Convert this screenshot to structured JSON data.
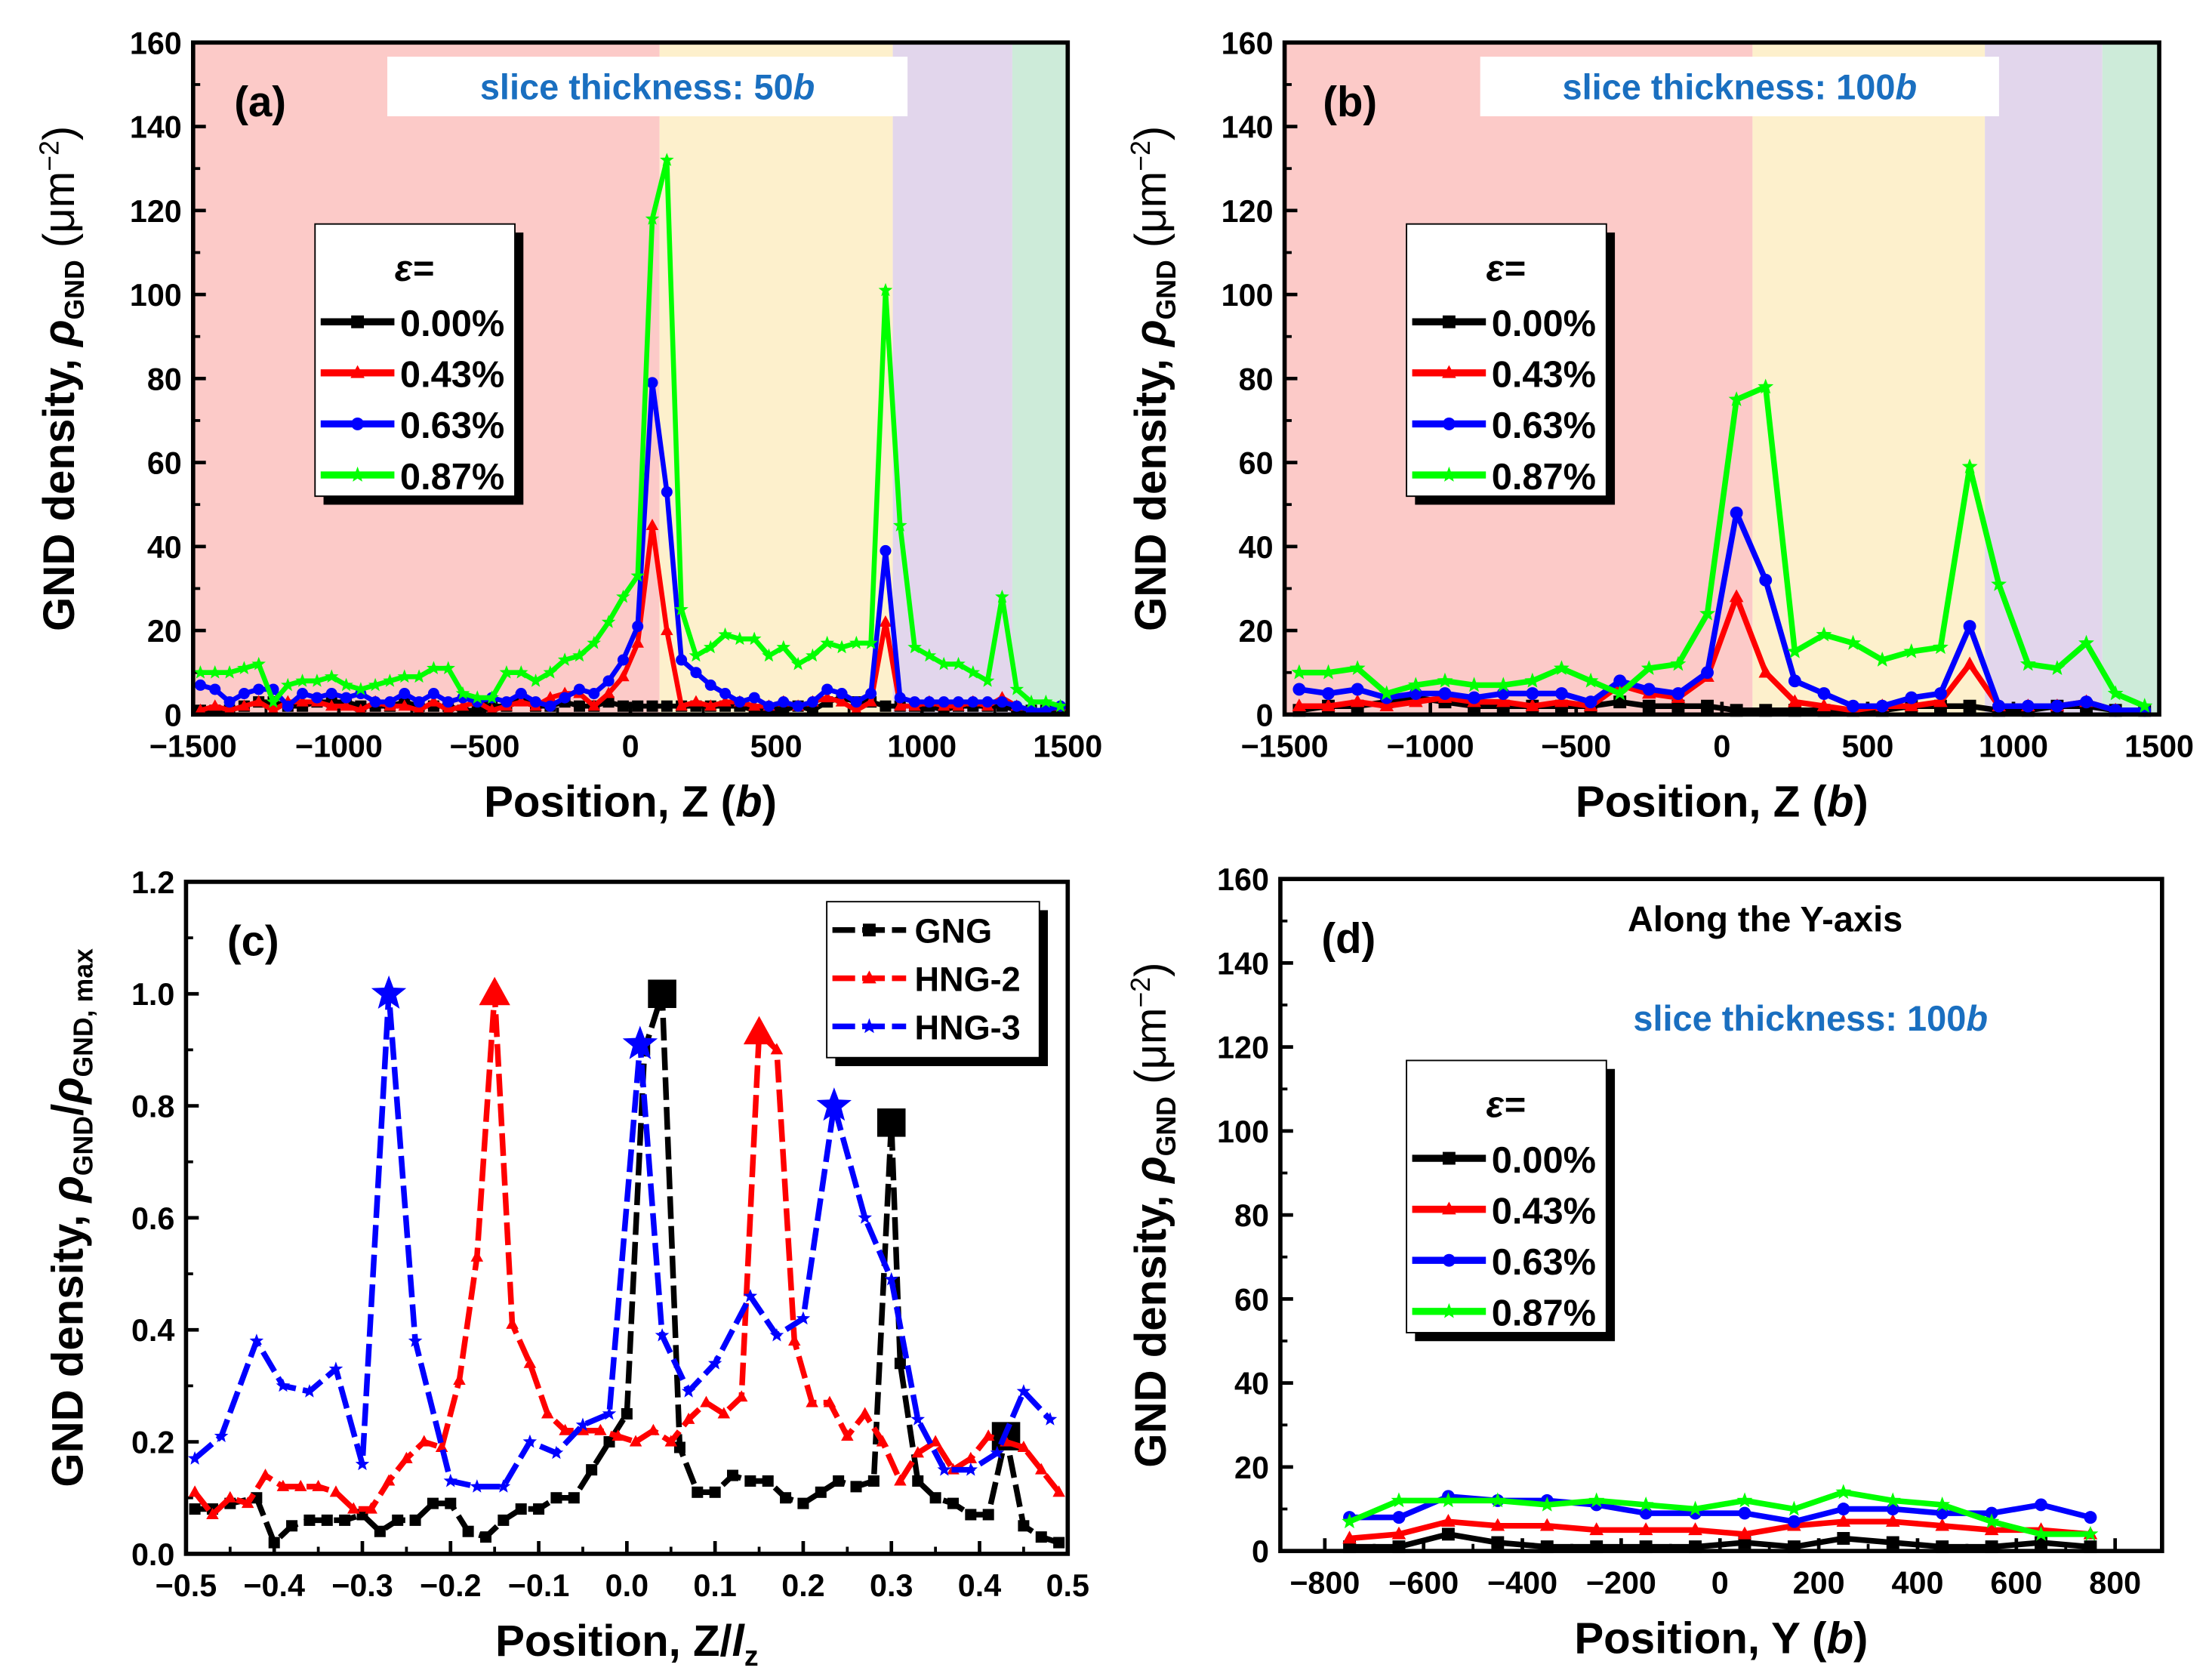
{
  "colors": {
    "black": "#000000",
    "red": "#ff0000",
    "blue": "#0000ff",
    "green": "#00ff00",
    "annot_blue": "#1a6fc0",
    "annot_red": "#c00000",
    "shade_pink": "#fccac8",
    "shade_yellow": "#fdf0cc",
    "shade_purple": "#e2d6ec",
    "shade_green": "#cdebd9"
  },
  "chart_data": [
    {
      "panel_label": "(a)",
      "type": "line",
      "annotation": [
        "slice thickness: 50",
        "b"
      ],
      "xlabel": [
        "Position, Z (",
        "b",
        ")"
      ],
      "ylabel": [
        "GND density, ",
        "ρ",
        "GND",
        " (μm",
        "−2",
        ")"
      ],
      "xlim": [
        -1500,
        1500
      ],
      "ylim": [
        0,
        160
      ],
      "xticks": [
        -1500,
        -1000,
        -500,
        0,
        500,
        1000,
        1500
      ],
      "xtick_labels": [
        "−1500",
        "−1000",
        "−500",
        "0",
        "500",
        "1000",
        "1500"
      ],
      "yticks": [
        0,
        20,
        40,
        60,
        80,
        100,
        120,
        140,
        160
      ],
      "ytick_labels": [
        "0",
        "20",
        "40",
        "60",
        "80",
        "100",
        "120",
        "140",
        "160"
      ],
      "shading": [
        {
          "from": -1500,
          "to": 100,
          "color": "shade_pink"
        },
        {
          "from": 100,
          "to": 900,
          "color": "shade_yellow"
        },
        {
          "from": 900,
          "to": 1310,
          "color": "shade_purple"
        },
        {
          "from": 1310,
          "to": 1500,
          "color": "shade_green"
        }
      ],
      "legend_title": "ε=",
      "x_start": -1475,
      "x_step": 50,
      "series": [
        {
          "name": "0.00%",
          "color": "black",
          "marker": "square",
          "values": [
            1,
            1,
            1,
            2,
            3,
            3,
            2,
            2,
            3,
            3,
            3,
            2,
            2,
            2,
            3,
            2,
            2,
            2,
            1,
            1,
            2,
            2,
            4,
            2,
            2,
            3,
            2,
            2,
            3,
            2,
            2,
            2,
            2,
            2,
            2,
            2,
            2,
            2,
            1,
            1,
            1,
            2,
            1,
            3,
            4,
            3,
            3,
            2,
            2,
            2,
            2,
            1,
            2,
            2,
            2,
            2,
            1,
            1,
            1,
            1
          ]
        },
        {
          "name": "0.43%",
          "color": "red",
          "marker": "triangle",
          "values": [
            1,
            2,
            1,
            2,
            3,
            1,
            3,
            3,
            3,
            2,
            2,
            1,
            3,
            2,
            2,
            1,
            3,
            1,
            2,
            3,
            1,
            2,
            3,
            2,
            4,
            5,
            5,
            2,
            5,
            9,
            17,
            45,
            20,
            2,
            3,
            2,
            3,
            3,
            2,
            2,
            3,
            2,
            3,
            4,
            3,
            1,
            3,
            22,
            2,
            2,
            3,
            2,
            2,
            3,
            2,
            4,
            2,
            1,
            1,
            2
          ]
        },
        {
          "name": "0.63%",
          "color": "blue",
          "marker": "circle",
          "values": [
            7,
            6,
            3,
            5,
            6,
            6,
            2,
            5,
            4,
            5,
            4,
            5,
            3,
            3,
            5,
            3,
            5,
            3,
            4,
            3,
            4,
            3,
            5,
            3,
            2,
            4,
            6,
            5,
            8,
            13,
            21,
            79,
            53,
            13,
            10,
            7,
            5,
            3,
            4,
            2,
            3,
            2,
            3,
            6,
            5,
            3,
            5,
            39,
            4,
            3,
            3,
            3,
            3,
            3,
            3,
            3,
            2,
            1,
            1,
            2
          ]
        },
        {
          "name": "0.87%",
          "color": "green",
          "marker": "star",
          "values": [
            10,
            10,
            10,
            11,
            12,
            3,
            7,
            8,
            8,
            9,
            7,
            6,
            7,
            8,
            9,
            9,
            11,
            11,
            5,
            4,
            4,
            10,
            10,
            8,
            10,
            13,
            14,
            17,
            22,
            28,
            33,
            118,
            132,
            25,
            14,
            16,
            19,
            18,
            18,
            14,
            16,
            12,
            14,
            17,
            16,
            17,
            17,
            101,
            45,
            16,
            14,
            12,
            12,
            10,
            8,
            28,
            6,
            3,
            3,
            2
          ]
        }
      ]
    },
    {
      "panel_label": "(b)",
      "type": "line",
      "annotation": [
        "slice thickness: 100",
        "b"
      ],
      "xlabel": [
        "Position, Z (",
        "b",
        ")"
      ],
      "ylabel": [
        "GND density, ",
        "ρ",
        "GND",
        " (μm",
        "−2",
        ")"
      ],
      "xlim": [
        -1500,
        1500
      ],
      "ylim": [
        0,
        160
      ],
      "xticks": [
        -1500,
        -1000,
        -500,
        0,
        500,
        1000,
        1500
      ],
      "xtick_labels": [
        "−1500",
        "−1000",
        "−500",
        "0",
        "500",
        "1000",
        "1500"
      ],
      "yticks": [
        0,
        20,
        40,
        60,
        80,
        100,
        120,
        140,
        160
      ],
      "ytick_labels": [
        "0",
        "20",
        "40",
        "60",
        "80",
        "100",
        "120",
        "140",
        "160"
      ],
      "shading": [
        {
          "from": -1500,
          "to": 105,
          "color": "shade_pink"
        },
        {
          "from": 105,
          "to": 902,
          "color": "shade_yellow"
        },
        {
          "from": 902,
          "to": 1305,
          "color": "shade_purple"
        },
        {
          "from": 1305,
          "to": 1500,
          "color": "shade_green"
        }
      ],
      "legend_title": "ε=",
      "x_start": -1450,
      "x_step": 100,
      "series": [
        {
          "name": "0.00%",
          "color": "black",
          "marker": "square",
          "values": [
            1,
            2,
            2,
            3,
            4,
            3,
            2,
            2,
            2,
            2,
            2,
            3,
            2,
            2,
            2,
            1,
            1,
            1,
            1,
            1,
            1,
            2,
            2,
            2,
            1,
            1,
            2,
            2,
            1,
            1
          ]
        },
        {
          "name": "0.43%",
          "color": "red",
          "marker": "triangle",
          "values": [
            2,
            2,
            3,
            2,
            3,
            4,
            3,
            3,
            2,
            3,
            2,
            7,
            5,
            4,
            9,
            28,
            10,
            3,
            2,
            1,
            2,
            2,
            3,
            12,
            2,
            2,
            2,
            3,
            1,
            1
          ]
        },
        {
          "name": "0.63%",
          "color": "blue",
          "marker": "circle",
          "values": [
            6,
            5,
            6,
            4,
            5,
            5,
            4,
            5,
            5,
            5,
            3,
            8,
            6,
            5,
            10,
            48,
            32,
            8,
            5,
            2,
            2,
            4,
            5,
            21,
            2,
            2,
            2,
            3,
            1,
            1
          ]
        },
        {
          "name": "0.87%",
          "color": "green",
          "marker": "star",
          "values": [
            10,
            10,
            11,
            5,
            7,
            8,
            7,
            7,
            8,
            11,
            8,
            5,
            11,
            12,
            24,
            75,
            78,
            15,
            19,
            17,
            13,
            15,
            16,
            59,
            31,
            12,
            11,
            17,
            5,
            2
          ]
        }
      ]
    },
    {
      "panel_label": "(c)",
      "type": "line",
      "xlabel": [
        "Position, Z/",
        "l",
        "z"
      ],
      "ylabel": [
        "GND density, ",
        "ρ",
        "GND",
        "/",
        "ρ",
        "GND, max"
      ],
      "xlim": [
        -0.5,
        0.5
      ],
      "ylim": [
        0,
        1.2
      ],
      "xticks": [
        -0.5,
        -0.4,
        -0.3,
        -0.2,
        -0.1,
        0.0,
        0.1,
        0.2,
        0.3,
        0.4,
        0.5
      ],
      "xtick_labels": [
        "−0.5",
        "−0.4",
        "−0.3",
        "−0.2",
        "−0.1",
        "0.0",
        "0.1",
        "0.2",
        "0.3",
        "0.4",
        "0.5"
      ],
      "yticks": [
        0,
        0.2,
        0.4,
        0.6,
        0.8,
        1.0,
        1.2
      ],
      "ytick_labels": [
        "0.0",
        "0.2",
        "0.4",
        "0.6",
        "0.8",
        "1.0",
        "1.2"
      ],
      "series": [
        {
          "name": "GNG",
          "color": "black",
          "marker": "square",
          "peaks": [
            0.04,
            0.3,
            0.43
          ],
          "x": [
            -0.49,
            -0.47,
            -0.45,
            -0.42,
            -0.4,
            -0.38,
            -0.36,
            -0.34,
            -0.32,
            -0.3,
            -0.28,
            -0.26,
            -0.24,
            -0.22,
            -0.2,
            -0.18,
            -0.16,
            -0.14,
            -0.12,
            -0.1,
            -0.08,
            -0.06,
            -0.04,
            -0.02,
            0.0,
            0.02,
            0.04,
            0.06,
            0.08,
            0.1,
            0.12,
            0.14,
            0.16,
            0.18,
            0.2,
            0.22,
            0.24,
            0.26,
            0.28,
            0.3,
            0.31,
            0.33,
            0.35,
            0.37,
            0.39,
            0.41,
            0.43,
            0.45,
            0.47,
            0.49
          ],
          "y": [
            0.08,
            0.08,
            0.09,
            0.1,
            0.02,
            0.05,
            0.06,
            0.06,
            0.06,
            0.07,
            0.04,
            0.06,
            0.06,
            0.09,
            0.09,
            0.04,
            0.03,
            0.06,
            0.08,
            0.08,
            0.1,
            0.1,
            0.15,
            0.2,
            0.25,
            0.9,
            1.0,
            0.19,
            0.11,
            0.11,
            0.14,
            0.13,
            0.13,
            0.1,
            0.09,
            0.11,
            0.13,
            0.12,
            0.13,
            0.77,
            0.34,
            0.13,
            0.1,
            0.09,
            0.07,
            0.07,
            0.21,
            0.05,
            0.03,
            0.02
          ]
        },
        {
          "name": "HNG-2",
          "color": "red",
          "marker": "triangle",
          "peaks": [
            -0.15,
            0.15
          ],
          "x": [
            -0.49,
            -0.47,
            -0.45,
            -0.43,
            -0.41,
            -0.39,
            -0.37,
            -0.35,
            -0.33,
            -0.31,
            -0.29,
            -0.27,
            -0.25,
            -0.23,
            -0.21,
            -0.19,
            -0.17,
            -0.15,
            -0.13,
            -0.11,
            -0.09,
            -0.07,
            -0.05,
            -0.03,
            -0.01,
            0.01,
            0.03,
            0.05,
            0.07,
            0.09,
            0.11,
            0.13,
            0.15,
            0.17,
            0.19,
            0.21,
            0.23,
            0.25,
            0.27,
            0.29,
            0.31,
            0.33,
            0.35,
            0.37,
            0.39,
            0.41,
            0.43,
            0.45,
            0.47,
            0.49
          ],
          "y": [
            0.11,
            0.07,
            0.1,
            0.09,
            0.14,
            0.12,
            0.12,
            0.12,
            0.11,
            0.08,
            0.08,
            0.13,
            0.17,
            0.2,
            0.19,
            0.31,
            0.53,
            1.0,
            0.41,
            0.34,
            0.25,
            0.22,
            0.22,
            0.22,
            0.21,
            0.2,
            0.22,
            0.2,
            0.24,
            0.27,
            0.25,
            0.28,
            0.93,
            0.9,
            0.38,
            0.27,
            0.27,
            0.21,
            0.25,
            0.2,
            0.13,
            0.18,
            0.2,
            0.15,
            0.17,
            0.21,
            0.2,
            0.19,
            0.15,
            0.11
          ]
        },
        {
          "name": "HNG-3",
          "color": "blue",
          "marker": "star",
          "peaks": [
            -0.27,
            0.015,
            0.235
          ],
          "x": [
            -0.49,
            -0.46,
            -0.42,
            -0.39,
            -0.36,
            -0.33,
            -0.3,
            -0.27,
            -0.24,
            -0.2,
            -0.17,
            -0.14,
            -0.11,
            -0.08,
            -0.05,
            -0.02,
            0.015,
            0.04,
            0.07,
            0.1,
            0.14,
            0.17,
            0.2,
            0.235,
            0.27,
            0.3,
            0.33,
            0.36,
            0.39,
            0.42,
            0.45,
            0.48
          ],
          "y": [
            0.17,
            0.21,
            0.38,
            0.3,
            0.29,
            0.33,
            0.16,
            1.0,
            0.38,
            0.13,
            0.12,
            0.12,
            0.2,
            0.18,
            0.23,
            0.25,
            0.91,
            0.39,
            0.29,
            0.34,
            0.46,
            0.39,
            0.42,
            0.8,
            0.6,
            0.49,
            0.24,
            0.15,
            0.15,
            0.18,
            0.29,
            0.24
          ]
        }
      ]
    },
    {
      "panel_label": "(d)",
      "type": "line",
      "annotation_title": "Along the Y-axis",
      "annotation": [
        "slice thickness: 100",
        "b"
      ],
      "xlabel": [
        "Position, Y (",
        "b",
        ")"
      ],
      "ylabel": [
        "GND density, ",
        "ρ",
        "GND",
        " (μm",
        "−2",
        ")"
      ],
      "xlim": [
        -890,
        895
      ],
      "ylim": [
        0,
        160
      ],
      "xticks": [
        -800,
        -600,
        -400,
        -200,
        0,
        200,
        400,
        600,
        800
      ],
      "xtick_labels": [
        "−800",
        "−600",
        "−400",
        "−200",
        "0",
        "200",
        "400",
        "600",
        "800"
      ],
      "yticks": [
        0,
        20,
        40,
        60,
        80,
        100,
        120,
        140,
        160
      ],
      "ytick_labels": [
        "0",
        "20",
        "40",
        "60",
        "80",
        "100",
        "120",
        "140",
        "160"
      ],
      "legend_title": "ε=",
      "x_start": -750,
      "x_step": 100,
      "series": [
        {
          "name": "0.00%",
          "color": "black",
          "marker": "square",
          "values": [
            1,
            1,
            4,
            2,
            1,
            1,
            1,
            1,
            2,
            1,
            3,
            2,
            1,
            1,
            2,
            1
          ]
        },
        {
          "name": "0.43%",
          "color": "red",
          "marker": "triangle",
          "values": [
            3,
            4,
            7,
            6,
            6,
            5,
            5,
            5,
            4,
            6,
            7,
            7,
            6,
            5,
            5,
            4
          ]
        },
        {
          "name": "0.63%",
          "color": "blue",
          "marker": "circle",
          "values": [
            8,
            8,
            13,
            12,
            12,
            11,
            9,
            9,
            9,
            7,
            10,
            10,
            9,
            9,
            11,
            8
          ]
        },
        {
          "name": "0.87%",
          "color": "green",
          "marker": "star",
          "values": [
            7,
            12,
            12,
            12,
            11,
            12,
            11,
            10,
            12,
            10,
            14,
            12,
            11,
            7,
            4,
            4
          ]
        }
      ]
    }
  ]
}
